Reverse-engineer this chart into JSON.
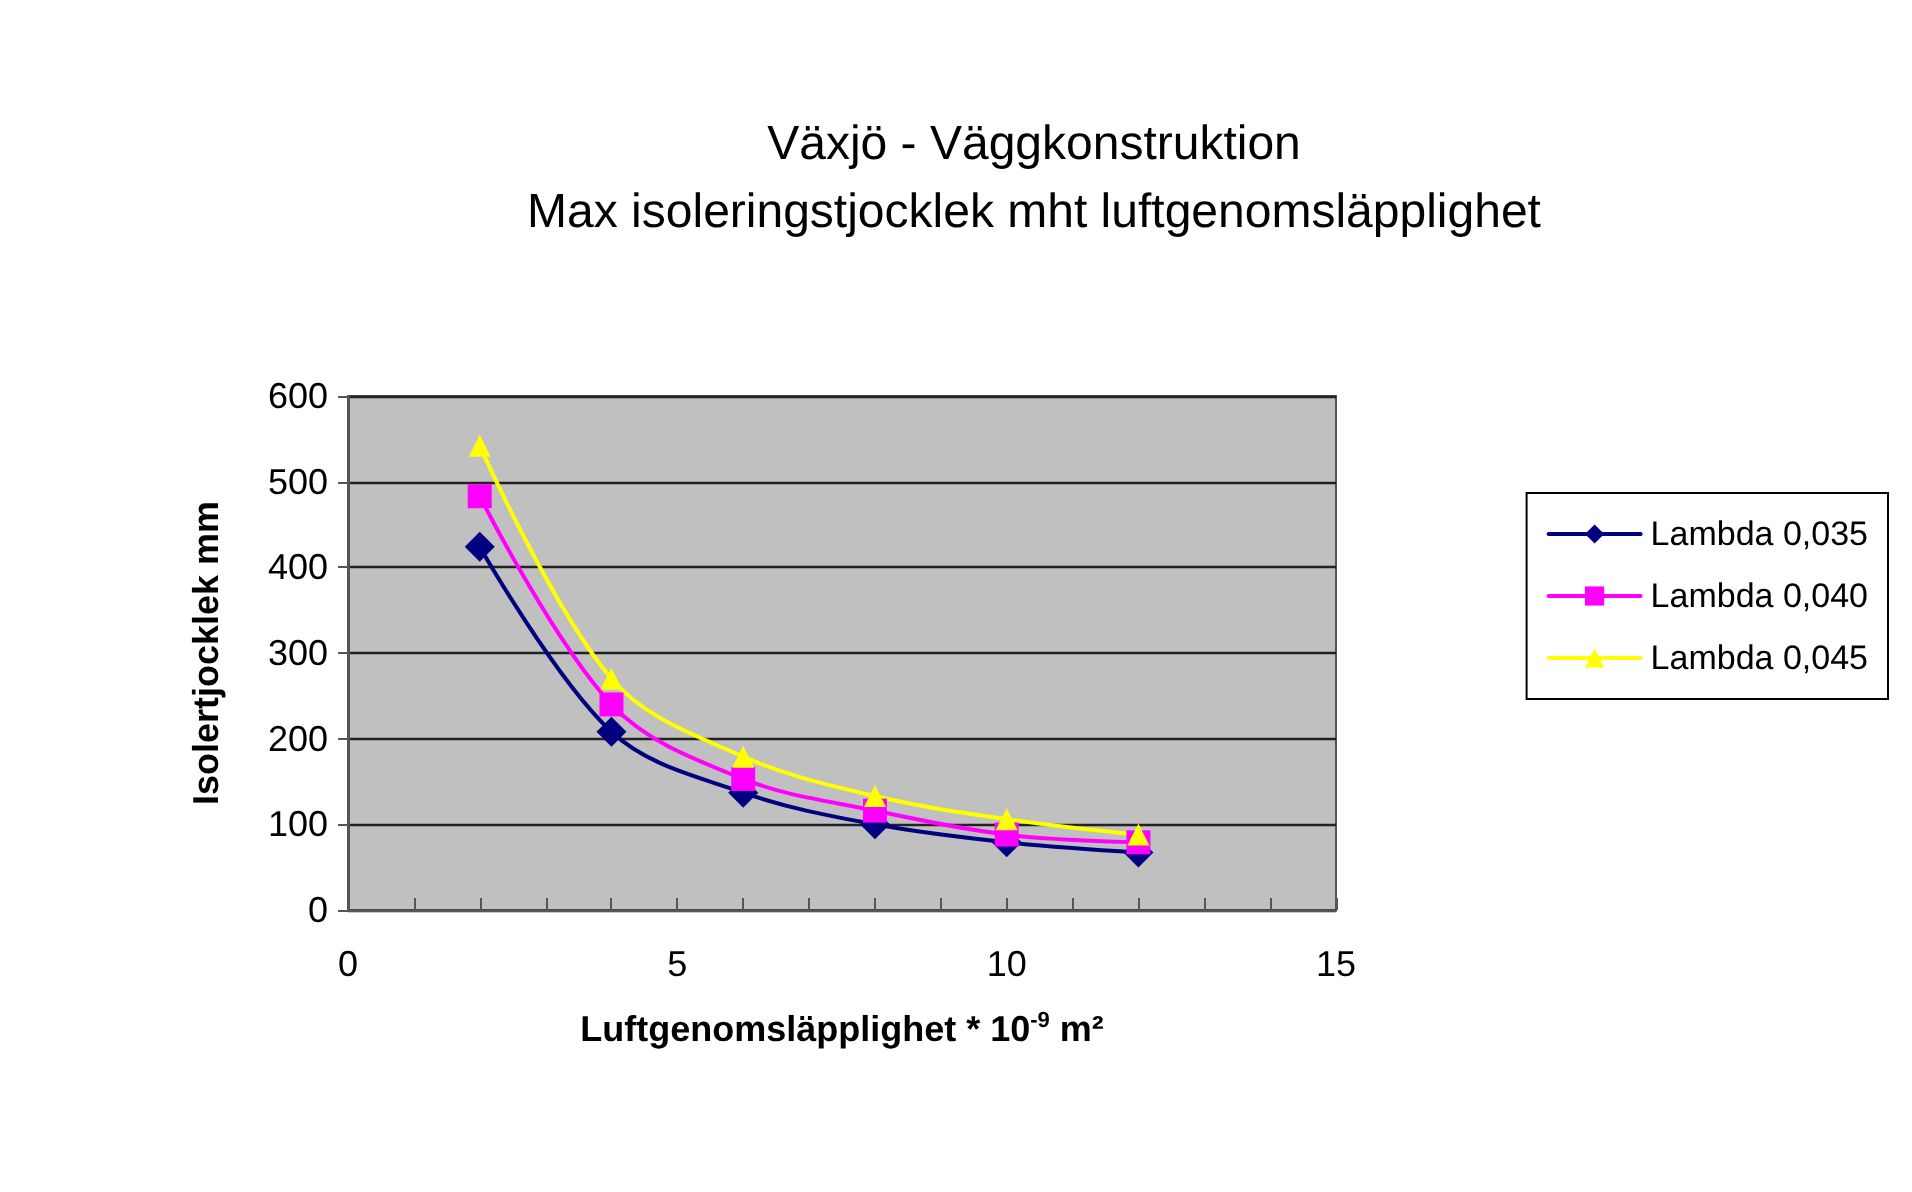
{
  "chart_data": {
    "type": "line",
    "title": "Växjö - Väggkonstruktion",
    "subtitle": "Max isoleringstjocklek mht luftgenomsläpplighet",
    "xlabel": "Luftgenomsläpplighet * 10$^{-9}$ m²",
    "ylabel": "Isolertjocklek mm",
    "x": [
      2,
      4,
      6,
      8,
      10,
      12
    ],
    "series": [
      {
        "name": "Lambda 0,035",
        "color": "#000080",
        "marker": "diamond",
        "values": [
          424,
          208,
          137,
          100,
          79,
          67
        ]
      },
      {
        "name": "Lambda 0,040",
        "color": "#ff00ff",
        "marker": "square",
        "values": [
          483,
          240,
          153,
          116,
          88,
          79
        ]
      },
      {
        "name": "Lambda 0,045",
        "color": "#ffff00",
        "marker": "triangle",
        "values": [
          542,
          270,
          179,
          133,
          106,
          88
        ]
      }
    ],
    "xlim": [
      0,
      15
    ],
    "xticks": [
      0,
      {
        "value": 1,
        "label": null
      },
      {
        "value": 2,
        "label": null
      },
      {
        "value": 3,
        "label": null
      },
      {
        "value": 4,
        "label": null
      },
      5,
      {
        "value": 6,
        "label": null
      },
      {
        "value": 7,
        "label": null
      },
      {
        "value": 8,
        "label": null
      },
      {
        "value": 9,
        "label": null
      },
      10,
      {
        "value": 11,
        "label": null
      },
      {
        "value": 12,
        "label": null
      },
      {
        "value": 13,
        "label": null
      },
      {
        "value": 14,
        "label": null
      },
      15
    ],
    "ylim": [
      0,
      600
    ],
    "yticks": [
      0,
      100,
      200,
      300,
      400,
      500,
      600
    ],
    "grid": "y",
    "legend": "right"
  }
}
